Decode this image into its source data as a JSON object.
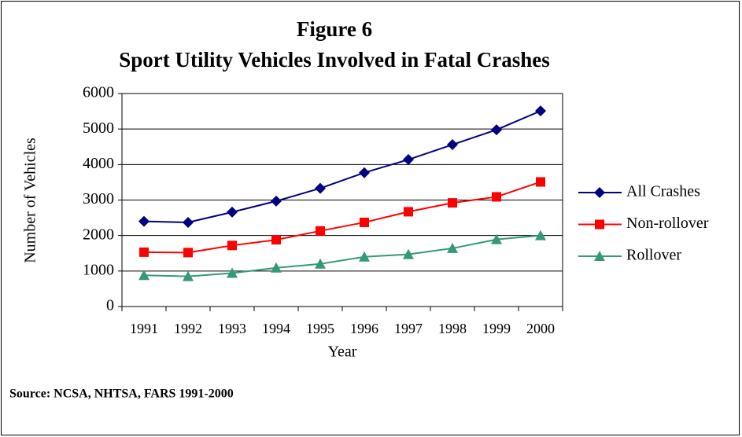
{
  "chart_data": {
    "type": "line",
    "title": "Figure 6",
    "subtitle": "Sport Utility Vehicles Involved in Fatal Crashes",
    "x_label": "Year",
    "y_label": "Number of Vehicles",
    "source": "Source: NCSA,  NHTSA, FARS 1991-2000",
    "categories": [
      "1991",
      "1992",
      "1993",
      "1994",
      "1995",
      "1996",
      "1997",
      "1998",
      "1999",
      "2000"
    ],
    "series": [
      {
        "name": "All Crashes",
        "color": "#000080",
        "marker": "diamond",
        "values": [
          2400,
          2370,
          2660,
          2970,
          3330,
          3770,
          4140,
          4560,
          4980,
          5510
        ]
      },
      {
        "name": "Non-rollover",
        "color": "#ff0000",
        "marker": "square",
        "values": [
          1530,
          1520,
          1720,
          1880,
          2130,
          2370,
          2670,
          2920,
          3090,
          3510
        ]
      },
      {
        "name": "Rollover",
        "color": "#339977",
        "marker": "triangle",
        "values": [
          880,
          850,
          940,
          1090,
          1200,
          1400,
          1470,
          1640,
          1890,
          2000
        ]
      }
    ],
    "ylim": [
      0,
      6000
    ],
    "yticks": [
      0,
      1000,
      2000,
      3000,
      4000,
      5000,
      6000
    ],
    "grid": true,
    "legend": "right"
  }
}
